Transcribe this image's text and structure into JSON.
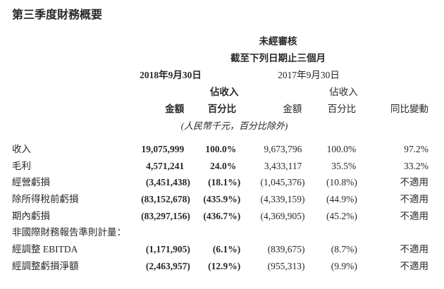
{
  "page": {
    "title": "第三季度財務概要",
    "background_color": "#ffffff",
    "text_color": "#282828"
  },
  "table": {
    "header": {
      "unaudited": "未經審核",
      "period": "截至下列日期止三個月",
      "date_2018": "2018年9月30日",
      "date_2017": "2017年9月30日",
      "pct_line1": "佔收入",
      "pct_line2": "百分比",
      "amount": "金額",
      "yoy": "同比變動",
      "unit_note": "(人民幣千元，百分比除外)"
    },
    "rows": [
      {
        "label": "收入",
        "amount_2018": "19,075,999",
        "pct_2018": "100.0%",
        "amount_2017": "9,673,796",
        "pct_2017": "100.0%",
        "yoy": "97.2%"
      },
      {
        "label": "毛利",
        "amount_2018": "4,571,241",
        "pct_2018": "24.0%",
        "amount_2017": "3,433,117",
        "pct_2017": "35.5%",
        "yoy": "33.2%"
      },
      {
        "label": "經營虧損",
        "amount_2018": "(3,451,438)",
        "pct_2018": "(18.1%)",
        "amount_2017": "(1,045,376)",
        "pct_2017": "(10.8%)",
        "yoy": "不適用"
      },
      {
        "label": "除所得稅前虧損",
        "amount_2018": "(83,152,678)",
        "pct_2018": "(435.9%)",
        "amount_2017": "(4,339,159)",
        "pct_2017": "(44.9%)",
        "yoy": "不適用"
      },
      {
        "label": "期內虧損",
        "amount_2018": "(83,297,156)",
        "pct_2018": "(436.7%)",
        "amount_2017": "(4,369,905)",
        "pct_2017": "(45.2%)",
        "yoy": "不適用"
      },
      {
        "label": "非國際財務報告準則計量：",
        "amount_2018": "",
        "pct_2018": "",
        "amount_2017": "",
        "pct_2017": "",
        "yoy": ""
      },
      {
        "label": "經調整 EBITDA",
        "amount_2018": "(1,171,905)",
        "pct_2018": "(6.1%)",
        "amount_2017": "(839,675)",
        "pct_2017": "(8.7%)",
        "yoy": "不適用"
      },
      {
        "label": "經調整虧損淨額",
        "amount_2018": "(2,463,957)",
        "pct_2018": "(12.9%)",
        "amount_2017": "(955,313)",
        "pct_2017": "(9.9%)",
        "yoy": "不適用"
      }
    ]
  }
}
